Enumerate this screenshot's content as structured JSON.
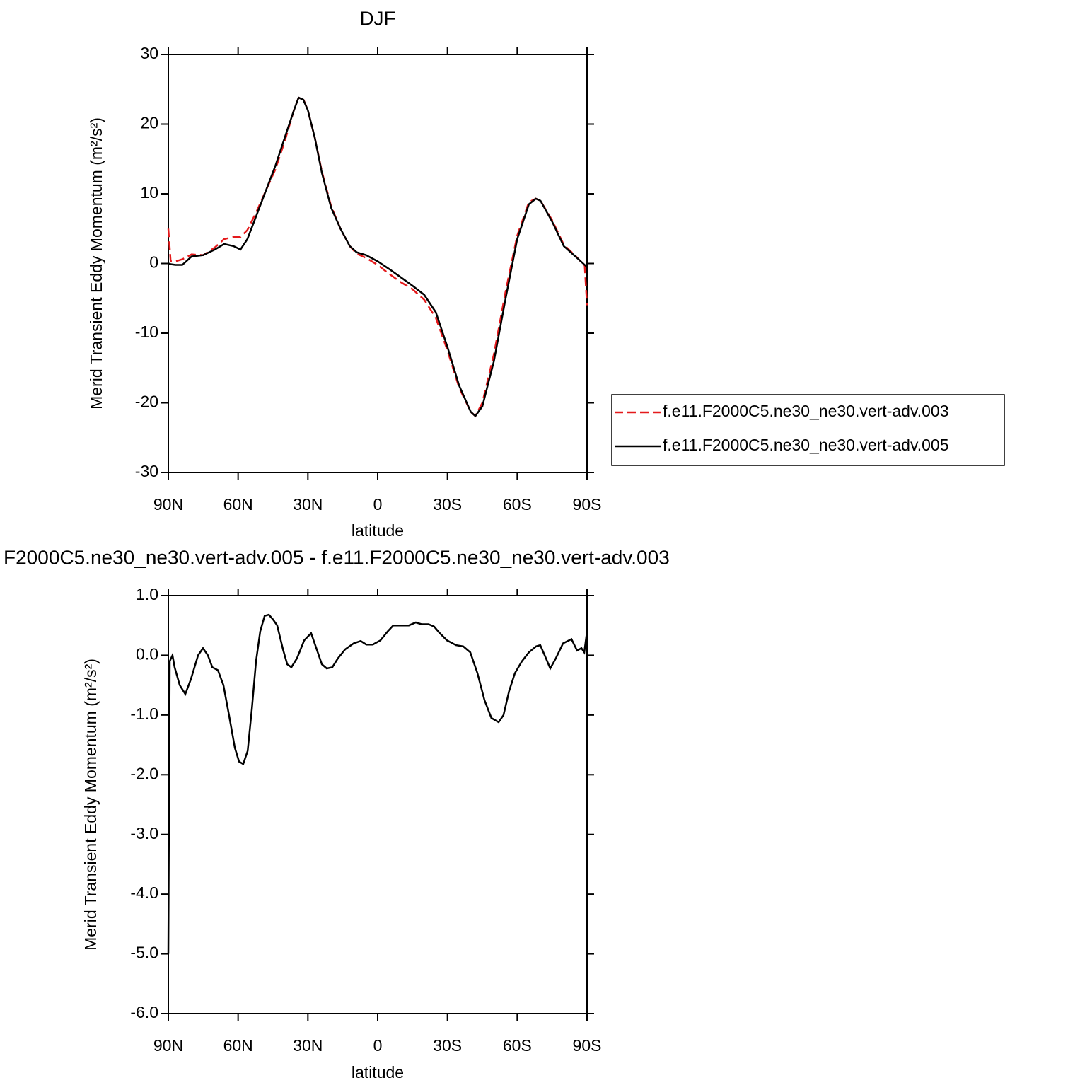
{
  "chart_data": [
    {
      "type": "line",
      "title": "DJF",
      "xlabel": "latitude",
      "ylabel": "Merid Transient Eddy Momentum (m²/s²)",
      "x": [
        90,
        89,
        87,
        84,
        80,
        75,
        70,
        66,
        62,
        59,
        56,
        52,
        48,
        44,
        40,
        36,
        34,
        32,
        30,
        27,
        24,
        20,
        16,
        12,
        9,
        5,
        0,
        -5,
        -10,
        -15,
        -20,
        -25,
        -30,
        -35,
        -40,
        -42,
        -45,
        -50,
        -55,
        -60,
        -65,
        -68,
        -70,
        -75,
        -80,
        -85,
        -89,
        -90
      ],
      "series": [
        {
          "name": "f.e11.F2000C5.ne30_ne30.vert-adv.003",
          "color": "#e41a1c",
          "line_style": "dashed",
          "values": [
            5,
            0.3,
            0.3,
            0.6,
            1.3,
            1.2,
            2.3,
            3.5,
            3.8,
            3.8,
            4.8,
            7.5,
            10.5,
            13.5,
            17.5,
            22,
            23.8,
            23.6,
            22,
            18,
            13.2,
            8.2,
            5,
            2.5,
            1.4,
            0.8,
            -0.2,
            -1.5,
            -2.7,
            -3.7,
            -5.2,
            -7.8,
            -12.5,
            -17.8,
            -21.3,
            -21.9,
            -20,
            -13,
            -4,
            4,
            8.8,
            9.3,
            9,
            6.2,
            2.7,
            1.1,
            -0.3,
            -6
          ]
        },
        {
          "name": "f.e11.F2000C5.ne30_ne30.vert-adv.005",
          "color": "#000000",
          "line_style": "solid",
          "values": [
            0,
            -0.1,
            -0.2,
            -0.2,
            1.0,
            1.2,
            2.0,
            2.8,
            2.5,
            2.0,
            3.5,
            7,
            10.5,
            14,
            18,
            22,
            23.8,
            23.5,
            22,
            18,
            13,
            8,
            5,
            2.5,
            1.6,
            1.2,
            0.3,
            -0.8,
            -2,
            -3.2,
            -4.5,
            -7,
            -12,
            -17.5,
            -21.3,
            -21.9,
            -20.5,
            -14,
            -5,
            3.5,
            8.5,
            9.3,
            9,
            6,
            2.5,
            1,
            -0.2,
            -0.5
          ]
        }
      ],
      "xlim": [
        90,
        -90
      ],
      "xticks": [
        {
          "value": 90,
          "label": "90N"
        },
        {
          "value": 60,
          "label": "60N"
        },
        {
          "value": 30,
          "label": "30N"
        },
        0,
        {
          "value": -30,
          "label": "30S"
        },
        {
          "value": -60,
          "label": "60S"
        },
        {
          "value": -90,
          "label": "90S"
        }
      ],
      "ylim": [
        -30,
        30
      ],
      "yticks": [
        30,
        20,
        10,
        0,
        -10,
        -20,
        -30
      ],
      "legend": "right",
      "grid": false
    },
    {
      "type": "line",
      "title": "F2000C5.ne30_ne30.vert-adv.005 - f.e11.F2000C5.ne30_ne30.vert-adv.003",
      "xlabel": "latitude",
      "ylabel": "Merid Transient Eddy Momentum (m²/s²)",
      "x": [
        90,
        89.4,
        88.2,
        87.3,
        85.1,
        82.7,
        80.3,
        77.2,
        75.1,
        73,
        71.1,
        68.7,
        66.3,
        63.9,
        61.4,
        59.6,
        57.8,
        55.9,
        54.1,
        52.3,
        50.5,
        48.6,
        46.8,
        45,
        43.2,
        40.7,
        38.9,
        37.1,
        34.7,
        31.6,
        28.6,
        26.2,
        24,
        21.9,
        19.5,
        17.1,
        14,
        10.3,
        7.3,
        4.9,
        2.1,
        -1.2,
        -4.3,
        -6.7,
        -9.7,
        -13.4,
        -16.4,
        -18.8,
        -21.9,
        -24.3,
        -26.7,
        -29.8,
        -33.7,
        -36.8,
        -39.8,
        -42.9,
        -45.9,
        -48.9,
        -52,
        -54.1,
        -56.5,
        -59,
        -62,
        -65,
        -68.1,
        -69.9,
        -71.8,
        -74.2,
        -76.6,
        -79.7,
        -83.3,
        -85.7,
        -87.6,
        -88.8,
        -90
      ],
      "values": [
        -5.0,
        -0.1,
        0.0,
        -0.2,
        -0.5,
        -0.65,
        -0.4,
        0.0,
        0.12,
        0.0,
        -0.2,
        -0.25,
        -0.5,
        -1.0,
        -1.55,
        -1.78,
        -1.82,
        -1.6,
        -0.9,
        -0.1,
        0.4,
        0.66,
        0.68,
        0.6,
        0.5,
        0.1,
        -0.15,
        -0.2,
        -0.05,
        0.25,
        0.37,
        0.1,
        -0.15,
        -0.22,
        -0.2,
        -0.05,
        0.1,
        0.2,
        0.24,
        0.18,
        0.18,
        0.25,
        0.4,
        0.5,
        0.5,
        0.5,
        0.55,
        0.52,
        0.52,
        0.48,
        0.37,
        0.25,
        0.17,
        0.15,
        0.05,
        -0.3,
        -0.75,
        -1.05,
        -1.12,
        -1.0,
        -0.6,
        -0.3,
        -0.1,
        0.05,
        0.15,
        0.17,
        0.0,
        -0.22,
        -0.05,
        0.2,
        0.27,
        0.08,
        0.12,
        0.05,
        0.4
      ],
      "color": "#000000",
      "line_style": "solid",
      "xlim": [
        90,
        -90
      ],
      "xticks": [
        {
          "value": 90,
          "label": "90N"
        },
        {
          "value": 60,
          "label": "60N"
        },
        {
          "value": 30,
          "label": "30N"
        },
        0,
        {
          "value": -30,
          "label": "30S"
        },
        {
          "value": -60,
          "label": "60S"
        },
        {
          "value": -90,
          "label": "90S"
        }
      ],
      "ylim": [
        -6,
        1
      ],
      "yticks": [
        {
          "value": 1,
          "label": "1.0"
        },
        {
          "value": 0,
          "label": "0.0"
        },
        {
          "value": -1,
          "label": "-1.0"
        },
        {
          "value": -2,
          "label": "-2.0"
        },
        {
          "value": -3,
          "label": "-3.0"
        },
        {
          "value": -4,
          "label": "-4.0"
        },
        {
          "value": -5,
          "label": "-5.0"
        },
        {
          "value": -6,
          "label": "-6.0"
        }
      ],
      "grid": false
    }
  ]
}
